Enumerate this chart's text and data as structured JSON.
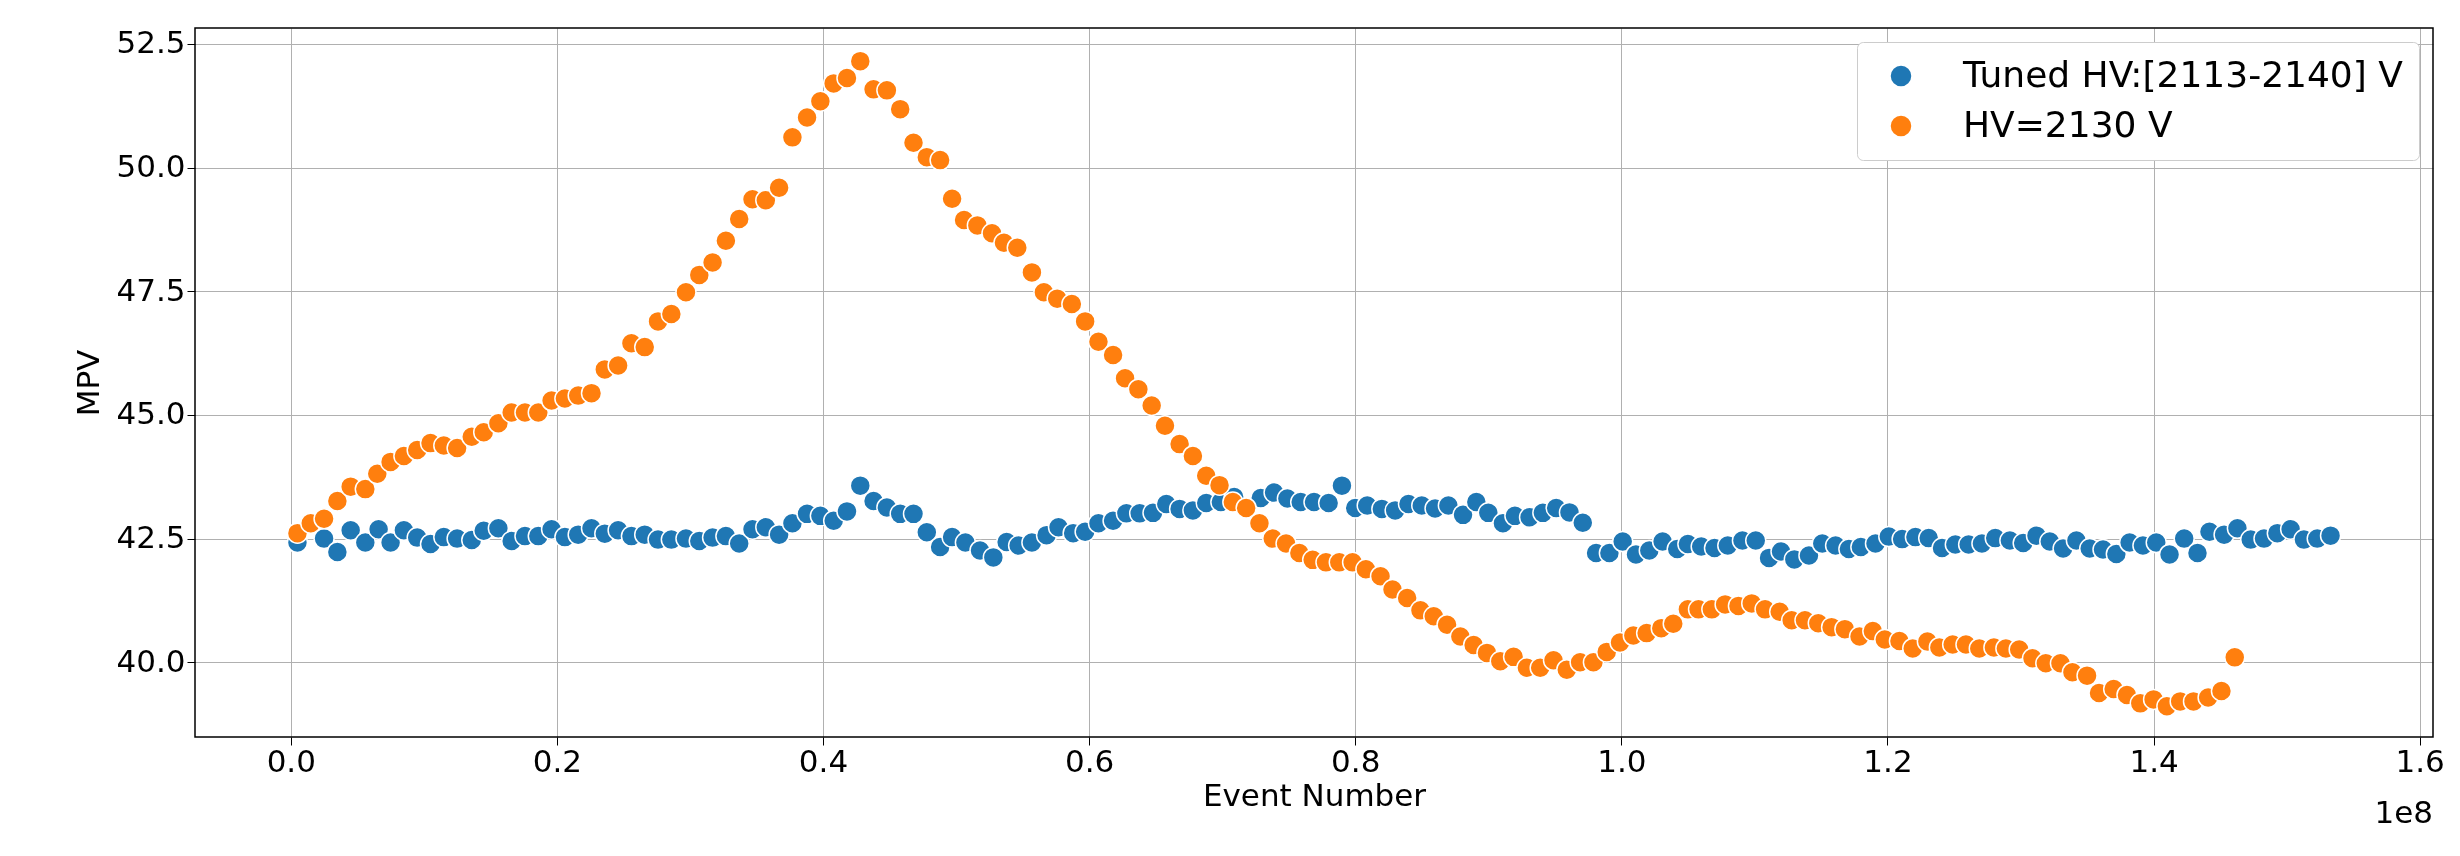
{
  "chart_data": {
    "type": "scatter",
    "xlabel": "Event Number",
    "ylabel": "MPV",
    "annotations": [
      "1e8"
    ],
    "xlim": [
      -0.072,
      1.61
    ],
    "ylim": [
      38.49,
      52.82
    ],
    "xticks": [
      {
        "value": 0,
        "label": "0.0"
      },
      0.2,
      0.4,
      0.6,
      0.8,
      {
        "value": 1,
        "label": "1.0"
      },
      1.2,
      1.4,
      1.6
    ],
    "yticks": [
      {
        "value": 40,
        "label": "40.0"
      },
      42.5,
      {
        "value": 45,
        "label": "45.0"
      },
      47.5,
      {
        "value": 50,
        "label": "50.0"
      },
      52.5
    ],
    "grid": true,
    "legend": "top right",
    "marker": "circle",
    "series": [
      {
        "name": "Tuned HV:[2113-2140] V",
        "color": "#1f77b4",
        "x": [
          0.005,
          0.025,
          0.035,
          0.045,
          0.056,
          0.066,
          0.075,
          0.085,
          0.095,
          0.105,
          0.115,
          0.125,
          0.136,
          0.145,
          0.156,
          0.166,
          0.176,
          0.186,
          0.196,
          0.206,
          0.216,
          0.226,
          0.236,
          0.246,
          0.256,
          0.266,
          0.276,
          0.286,
          0.297,
          0.307,
          0.317,
          0.327,
          0.337,
          0.347,
          0.357,
          0.367,
          0.377,
          0.388,
          0.398,
          0.408,
          0.418,
          0.428,
          0.438,
          0.448,
          0.458,
          0.468,
          0.478,
          0.488,
          0.497,
          0.507,
          0.518,
          0.528,
          0.538,
          0.547,
          0.557,
          0.568,
          0.577,
          0.588,
          0.597,
          0.607,
          0.618,
          0.628,
          0.638,
          0.648,
          0.658,
          0.668,
          0.678,
          0.688,
          0.699,
          0.709,
          0.729,
          0.739,
          0.749,
          0.759,
          0.769,
          0.78,
          0.79,
          0.8,
          0.809,
          0.82,
          0.83,
          0.84,
          0.85,
          0.86,
          0.87,
          0.881,
          0.891,
          0.9,
          0.911,
          0.92,
          0.931,
          0.941,
          0.951,
          0.961,
          0.971,
          0.981,
          0.991,
          1.001,
          1.011,
          1.021,
          1.031,
          1.042,
          1.05,
          1.06,
          1.07,
          1.08,
          1.091,
          1.101,
          1.111,
          1.12,
          1.13,
          1.141,
          1.151,
          1.161,
          1.171,
          1.18,
          1.191,
          1.201,
          1.211,
          1.221,
          1.231,
          1.241,
          1.251,
          1.261,
          1.271,
          1.281,
          1.292,
          1.302,
          1.312,
          1.322,
          1.332,
          1.342,
          1.352,
          1.362,
          1.372,
          1.382,
          1.392,
          1.402,
          1.412,
          1.423,
          1.433,
          1.442,
          1.453,
          1.463,
          1.473,
          1.483,
          1.493,
          1.503,
          1.513,
          1.523,
          1.533
        ],
        "values": [
          42.42,
          42.5,
          42.23,
          42.67,
          42.42,
          42.69,
          42.42,
          42.67,
          42.52,
          42.39,
          42.53,
          42.5,
          42.47,
          42.66,
          42.71,
          42.45,
          42.55,
          42.55,
          42.69,
          42.53,
          42.58,
          42.71,
          42.6,
          42.67,
          42.55,
          42.58,
          42.48,
          42.48,
          42.5,
          42.45,
          42.52,
          42.55,
          42.4,
          42.69,
          42.73,
          42.58,
          42.81,
          43.0,
          42.96,
          42.86,
          43.05,
          43.57,
          43.26,
          43.13,
          43.0,
          43.0,
          42.63,
          42.33,
          42.53,
          42.42,
          42.26,
          42.12,
          42.43,
          42.36,
          42.42,
          42.57,
          42.73,
          42.61,
          42.64,
          42.81,
          42.86,
          43.01,
          43.01,
          43.02,
          43.2,
          43.1,
          43.07,
          43.22,
          43.24,
          43.34,
          43.32,
          43.43,
          43.31,
          43.24,
          43.24,
          43.22,
          43.57,
          43.12,
          43.17,
          43.1,
          43.07,
          43.2,
          43.17,
          43.11,
          43.17,
          42.98,
          43.24,
          43.02,
          42.81,
          42.96,
          42.93,
          43.02,
          43.12,
          43.03,
          42.82,
          42.21,
          42.21,
          42.44,
          42.18,
          42.26,
          42.44,
          42.29,
          42.39,
          42.34,
          42.31,
          42.36,
          42.46,
          42.46,
          42.11,
          42.24,
          42.08,
          42.16,
          42.4,
          42.36,
          42.29,
          42.33,
          42.4,
          42.54,
          42.49,
          42.53,
          42.51,
          42.31,
          42.38,
          42.38,
          42.4,
          42.51,
          42.46,
          42.41,
          42.56,
          42.44,
          42.3,
          42.46,
          42.3,
          42.28,
          42.19,
          42.42,
          42.36,
          42.42,
          42.18,
          42.5,
          42.21,
          42.64,
          42.58,
          42.71,
          42.48,
          42.5,
          42.61,
          42.69,
          42.48,
          42.5,
          42.56
        ]
      },
      {
        "name": "HV=2130 V",
        "color": "#ff7f0e",
        "x": [
          0.005,
          0.015,
          0.025,
          0.035,
          0.045,
          0.056,
          0.065,
          0.075,
          0.085,
          0.095,
          0.105,
          0.115,
          0.125,
          0.136,
          0.145,
          0.156,
          0.166,
          0.176,
          0.186,
          0.196,
          0.206,
          0.216,
          0.226,
          0.236,
          0.246,
          0.256,
          0.266,
          0.276,
          0.286,
          0.297,
          0.307,
          0.317,
          0.327,
          0.337,
          0.347,
          0.357,
          0.367,
          0.377,
          0.388,
          0.398,
          0.408,
          0.418,
          0.428,
          0.438,
          0.448,
          0.458,
          0.468,
          0.478,
          0.488,
          0.497,
          0.506,
          0.516,
          0.527,
          0.536,
          0.546,
          0.557,
          0.566,
          0.576,
          0.587,
          0.597,
          0.607,
          0.618,
          0.627,
          0.637,
          0.647,
          0.657,
          0.668,
          0.678,
          0.688,
          0.698,
          0.708,
          0.718,
          0.728,
          0.738,
          0.748,
          0.758,
          0.768,
          0.778,
          0.788,
          0.798,
          0.808,
          0.819,
          0.828,
          0.839,
          0.849,
          0.859,
          0.869,
          0.879,
          0.889,
          0.899,
          0.909,
          0.919,
          0.929,
          0.939,
          0.949,
          0.959,
          0.969,
          0.979,
          0.989,
          0.999,
          1.009,
          1.019,
          1.03,
          1.039,
          1.05,
          1.058,
          1.068,
          1.078,
          1.088,
          1.098,
          1.108,
          1.119,
          1.128,
          1.138,
          1.148,
          1.158,
          1.168,
          1.179,
          1.189,
          1.198,
          1.209,
          1.219,
          1.23,
          1.239,
          1.249,
          1.259,
          1.269,
          1.28,
          1.289,
          1.299,
          1.309,
          1.319,
          1.33,
          1.339,
          1.35,
          1.359,
          1.37,
          1.38,
          1.39,
          1.4,
          1.41,
          1.42,
          1.43,
          1.441,
          1.451,
          1.461
        ],
        "values": [
          42.61,
          42.81,
          42.9,
          43.26,
          43.55,
          43.5,
          43.81,
          44.05,
          44.17,
          44.29,
          44.43,
          44.38,
          44.33,
          44.56,
          44.65,
          44.83,
          45.05,
          45.05,
          45.05,
          45.29,
          45.33,
          45.39,
          45.44,
          45.92,
          46.0,
          46.45,
          46.37,
          46.89,
          47.04,
          47.48,
          47.83,
          48.08,
          48.52,
          48.96,
          49.36,
          49.34,
          49.59,
          50.61,
          51.01,
          51.34,
          51.7,
          51.81,
          52.15,
          51.58,
          51.56,
          51.18,
          50.5,
          50.21,
          50.15,
          49.37,
          48.94,
          48.83,
          48.67,
          48.48,
          48.38,
          47.88,
          47.48,
          47.35,
          47.24,
          46.89,
          46.48,
          46.21,
          45.74,
          45.52,
          45.19,
          44.78,
          44.41,
          44.17,
          43.77,
          43.58,
          43.24,
          43.12,
          42.81,
          42.5,
          42.4,
          42.21,
          42.07,
          42.02,
          42.02,
          42.02,
          41.88,
          41.74,
          41.47,
          41.3,
          41.05,
          40.93,
          40.76,
          40.52,
          40.35,
          40.19,
          40.02,
          40.11,
          39.89,
          39.89,
          40.04,
          39.85,
          40.0,
          40.0,
          40.21,
          40.4,
          40.54,
          40.59,
          40.69,
          40.78,
          41.07,
          41.07,
          41.07,
          41.17,
          41.14,
          41.19,
          41.07,
          41.02,
          40.85,
          40.85,
          40.79,
          40.71,
          40.67,
          40.52,
          40.63,
          40.46,
          40.43,
          40.28,
          40.42,
          40.3,
          40.36,
          40.36,
          40.28,
          40.3,
          40.28,
          40.26,
          40.08,
          39.98,
          39.98,
          39.8,
          39.73,
          39.38,
          39.46,
          39.34,
          39.17,
          39.25,
          39.11,
          39.21,
          39.21,
          39.29,
          39.42,
          40.1
        ]
      }
    ]
  }
}
